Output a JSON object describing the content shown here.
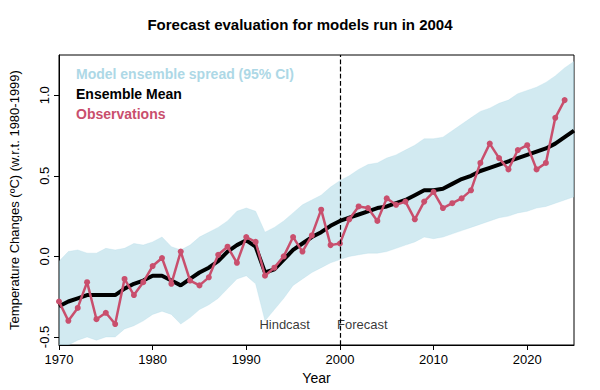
{
  "chart_data": {
    "type": "line",
    "title": "Forecast evaluation for models run in 2004",
    "x_label": "Year",
    "y_label": "Temperature Changes (ºC) (w.r.t. 1980-1999)",
    "xlim": [
      1970,
      2025
    ],
    "xticks": [
      1970,
      1980,
      1990,
      2000,
      2010,
      2020
    ],
    "ylim": [
      -0.55,
      1.25
    ],
    "yticks": [
      -0.5,
      {
        "value": 0,
        "label": "0.0"
      },
      0.5,
      {
        "value": 1,
        "label": "1.0"
      }
    ],
    "grid": false,
    "legend": "upper left",
    "x": [
      1970,
      1971,
      1972,
      1973,
      1974,
      1975,
      1976,
      1977,
      1978,
      1979,
      1980,
      1981,
      1982,
      1983,
      1984,
      1985,
      1986,
      1987,
      1988,
      1989,
      1990,
      1991,
      1992,
      1993,
      1994,
      1995,
      1996,
      1997,
      1998,
      1999,
      2000,
      2001,
      2002,
      2003,
      2004,
      2005,
      2006,
      2007,
      2008,
      2009,
      2010,
      2011,
      2012,
      2013,
      2014,
      2015,
      2016,
      2017,
      2018,
      2019,
      2020,
      2021,
      2022,
      2023,
      2024,
      2025
    ],
    "series": [
      {
        "name": "Model ensemble spread (95% CI)",
        "type": "band",
        "color": "#add8e6",
        "lower": [
          -0.55,
          -0.55,
          -0.52,
          -0.5,
          -0.52,
          -0.5,
          -0.5,
          -0.45,
          -0.43,
          -0.4,
          -0.36,
          -0.34,
          -0.36,
          -0.42,
          -0.38,
          -0.33,
          -0.3,
          -0.26,
          -0.2,
          -0.14,
          -0.12,
          -0.17,
          -0.4,
          -0.33,
          -0.26,
          -0.18,
          -0.14,
          -0.1,
          -0.07,
          -0.04,
          -0.02,
          0.0,
          0.01,
          0.02,
          0.02,
          0.03,
          0.05,
          0.07,
          0.09,
          0.12,
          0.11,
          0.12,
          0.14,
          0.16,
          0.18,
          0.2,
          0.22,
          0.24,
          0.25,
          0.27,
          0.28,
          0.3,
          0.31,
          0.33,
          0.35,
          0.37
        ],
        "upper": [
          -0.03,
          0.03,
          0.04,
          0.02,
          0.02,
          0.05,
          0.04,
          0.05,
          0.08,
          0.07,
          0.09,
          0.12,
          0.06,
          0.04,
          0.07,
          0.12,
          0.15,
          0.18,
          0.22,
          0.28,
          0.3,
          0.28,
          0.15,
          0.18,
          0.22,
          0.27,
          0.32,
          0.35,
          0.38,
          0.43,
          0.47,
          0.5,
          0.54,
          0.57,
          0.58,
          0.61,
          0.63,
          0.66,
          0.69,
          0.73,
          0.73,
          0.74,
          0.78,
          0.82,
          0.86,
          0.9,
          0.92,
          0.95,
          0.97,
          1.01,
          1.03,
          1.05,
          1.08,
          1.12,
          1.17,
          1.21
        ]
      },
      {
        "name": "Ensemble Mean",
        "type": "line",
        "color": "#000000",
        "marker": "none",
        "values": [
          -0.31,
          -0.28,
          -0.26,
          -0.24,
          -0.24,
          -0.24,
          -0.24,
          -0.2,
          -0.17,
          -0.15,
          -0.12,
          -0.12,
          -0.15,
          -0.18,
          -0.14,
          -0.1,
          -0.07,
          -0.03,
          0.03,
          0.07,
          0.1,
          0.06,
          -0.1,
          -0.08,
          -0.02,
          0.04,
          0.08,
          0.12,
          0.15,
          0.19,
          0.22,
          0.24,
          0.26,
          0.28,
          0.3,
          0.31,
          0.33,
          0.35,
          0.38,
          0.41,
          0.41,
          0.42,
          0.45,
          0.48,
          0.5,
          0.53,
          0.55,
          0.57,
          0.59,
          0.61,
          0.63,
          0.65,
          0.67,
          0.7,
          0.74,
          0.78
        ]
      },
      {
        "name": "Observations",
        "type": "line",
        "color": "#c94f6d",
        "marker": "circle",
        "values": [
          -0.28,
          -0.4,
          -0.32,
          -0.16,
          -0.39,
          -0.35,
          -0.42,
          -0.14,
          -0.24,
          -0.16,
          -0.06,
          -0.01,
          -0.17,
          0.03,
          -0.15,
          -0.18,
          -0.13,
          0.01,
          0.06,
          -0.04,
          0.12,
          0.09,
          -0.12,
          -0.07,
          0.0,
          0.12,
          0.03,
          0.13,
          0.29,
          0.07,
          0.08,
          0.23,
          0.31,
          0.3,
          0.22,
          0.36,
          0.32,
          0.34,
          0.23,
          0.34,
          0.4,
          0.3,
          0.33,
          0.36,
          0.41,
          0.58,
          0.7,
          0.61,
          0.54,
          0.66,
          0.69,
          0.54,
          0.58,
          0.86,
          0.97,
          null
        ]
      }
    ],
    "reference_line": {
      "x": 2000,
      "line_style": "dashed",
      "color": "#000000"
    },
    "annotations": [
      {
        "text": "Hindcast",
        "x": 1994.1,
        "y": -0.42
      },
      {
        "text": "Forecast",
        "x": 2002.4,
        "y": -0.42
      }
    ]
  }
}
